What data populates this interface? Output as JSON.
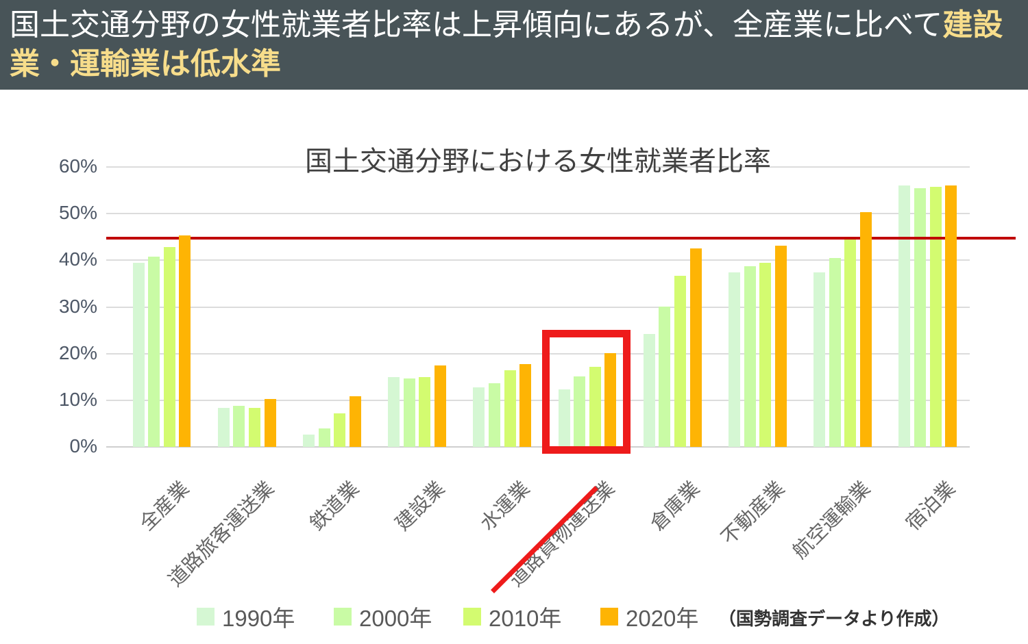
{
  "header": {
    "text_normal": "国土交通分野の女性就業者比率は上昇傾向にあるが、全産業に比べて",
    "text_highlight": "建設業・運輸業は低水準",
    "bg_color": "#485458",
    "highlight_color": "#f7dd8b"
  },
  "chart_data": {
    "type": "bar",
    "title": "国土交通分野における女性就業者比率",
    "categories": [
      "全産業",
      "道路旅客運送業",
      "鉄道業",
      "建設業",
      "水運業",
      "道路貨物運送業",
      "倉庫業",
      "不動産業",
      "航空運輸業",
      "宿泊業"
    ],
    "series": [
      {
        "name": "1990年",
        "color": "#d5f7d3",
        "values": [
          39.5,
          8.3,
          2.7,
          14.9,
          12.8,
          12.3,
          24.2,
          37.4,
          37.4,
          56.0
        ]
      },
      {
        "name": "2000年",
        "color": "#c9fba5",
        "values": [
          40.8,
          8.8,
          3.9,
          14.6,
          13.7,
          15.1,
          30.1,
          38.8,
          40.5,
          55.5
        ]
      },
      {
        "name": "2010年",
        "color": "#d3fb70",
        "values": [
          42.8,
          8.4,
          7.2,
          14.9,
          16.5,
          17.2,
          36.7,
          39.4,
          44.7,
          55.8
        ]
      },
      {
        "name": "2020年",
        "color": "#feb404",
        "values": [
          45.3,
          10.2,
          10.9,
          17.5,
          17.7,
          20.1,
          42.6,
          43.2,
          50.3,
          56.1
        ]
      }
    ],
    "ylim": [
      0,
      60
    ],
    "yticks": [
      "0%",
      "10%",
      "20%",
      "30%",
      "40%",
      "50%",
      "60%"
    ],
    "grid": true,
    "legend_position": "bottom",
    "reference_line": {
      "value": 44.8,
      "color": "#c00000"
    },
    "annotations": {
      "highlight_box": {
        "category": "道路貨物運送業",
        "color": "#ee1b1b"
      },
      "underline": {
        "category": "道路貨物運送業",
        "color": "#ee1b1b"
      }
    },
    "source_note": "（国勢調査データより作成）"
  }
}
